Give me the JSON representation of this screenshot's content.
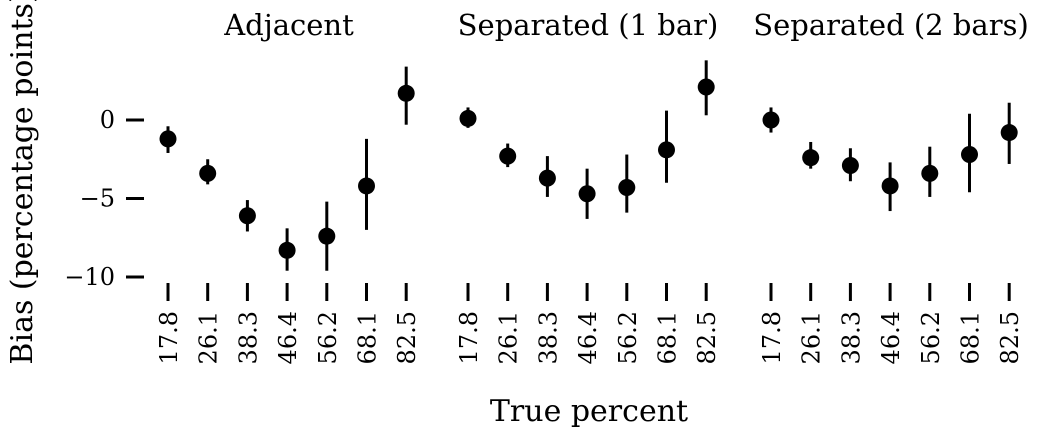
{
  "chart_data": {
    "type": "scatter",
    "ylabel": "Bias (percentage points)",
    "xlabel": "True percent",
    "ylim": [
      -10.5,
      3.5
    ],
    "yticks": [
      {
        "value": 0,
        "label": "0"
      },
      {
        "value": -5,
        "label": "−5"
      },
      {
        "value": -10,
        "label": "−10"
      }
    ],
    "categories": [
      "17.8",
      "26.1",
      "38.3",
      "46.4",
      "56.2",
      "68.1",
      "82.5"
    ],
    "grid": false,
    "panels": [
      {
        "title": "Adjacent",
        "points": [
          {
            "x": "17.8",
            "y": -1.2,
            "low": -2.1,
            "high": -0.4
          },
          {
            "x": "26.1",
            "y": -3.4,
            "low": -4.1,
            "high": -2.5
          },
          {
            "x": "38.3",
            "y": -6.1,
            "low": -7.1,
            "high": -5.1
          },
          {
            "x": "46.4",
            "y": -8.3,
            "low": -9.6,
            "high": -6.9
          },
          {
            "x": "56.2",
            "y": -7.4,
            "low": -9.6,
            "high": -5.2
          },
          {
            "x": "68.1",
            "y": -4.2,
            "low": -7.0,
            "high": -1.2
          },
          {
            "x": "82.5",
            "y": 1.7,
            "low": -0.3,
            "high": 3.4
          }
        ]
      },
      {
        "title": "Separated (1 bar)",
        "points": [
          {
            "x": "17.8",
            "y": 0.1,
            "low": -0.5,
            "high": 0.8
          },
          {
            "x": "26.1",
            "y": -2.3,
            "low": -3.0,
            "high": -1.5
          },
          {
            "x": "38.3",
            "y": -3.7,
            "low": -4.9,
            "high": -2.3
          },
          {
            "x": "46.4",
            "y": -4.7,
            "low": -6.3,
            "high": -3.1
          },
          {
            "x": "56.2",
            "y": -4.3,
            "low": -5.9,
            "high": -2.2
          },
          {
            "x": "68.1",
            "y": -1.9,
            "low": -4.0,
            "high": 0.6
          },
          {
            "x": "82.5",
            "y": 2.1,
            "low": 0.3,
            "high": 3.8
          }
        ]
      },
      {
        "title": "Separated (2 bars)",
        "points": [
          {
            "x": "17.8",
            "y": 0.0,
            "low": -0.8,
            "high": 0.8
          },
          {
            "x": "26.1",
            "y": -2.4,
            "low": -3.1,
            "high": -1.4
          },
          {
            "x": "38.3",
            "y": -2.9,
            "low": -3.9,
            "high": -1.8
          },
          {
            "x": "46.4",
            "y": -4.2,
            "low": -5.8,
            "high": -2.7
          },
          {
            "x": "56.2",
            "y": -3.4,
            "low": -4.9,
            "high": -1.7
          },
          {
            "x": "68.1",
            "y": -2.2,
            "low": -4.6,
            "high": 0.4
          },
          {
            "x": "82.5",
            "y": -0.8,
            "low": -2.8,
            "high": 1.1
          }
        ]
      }
    ]
  }
}
